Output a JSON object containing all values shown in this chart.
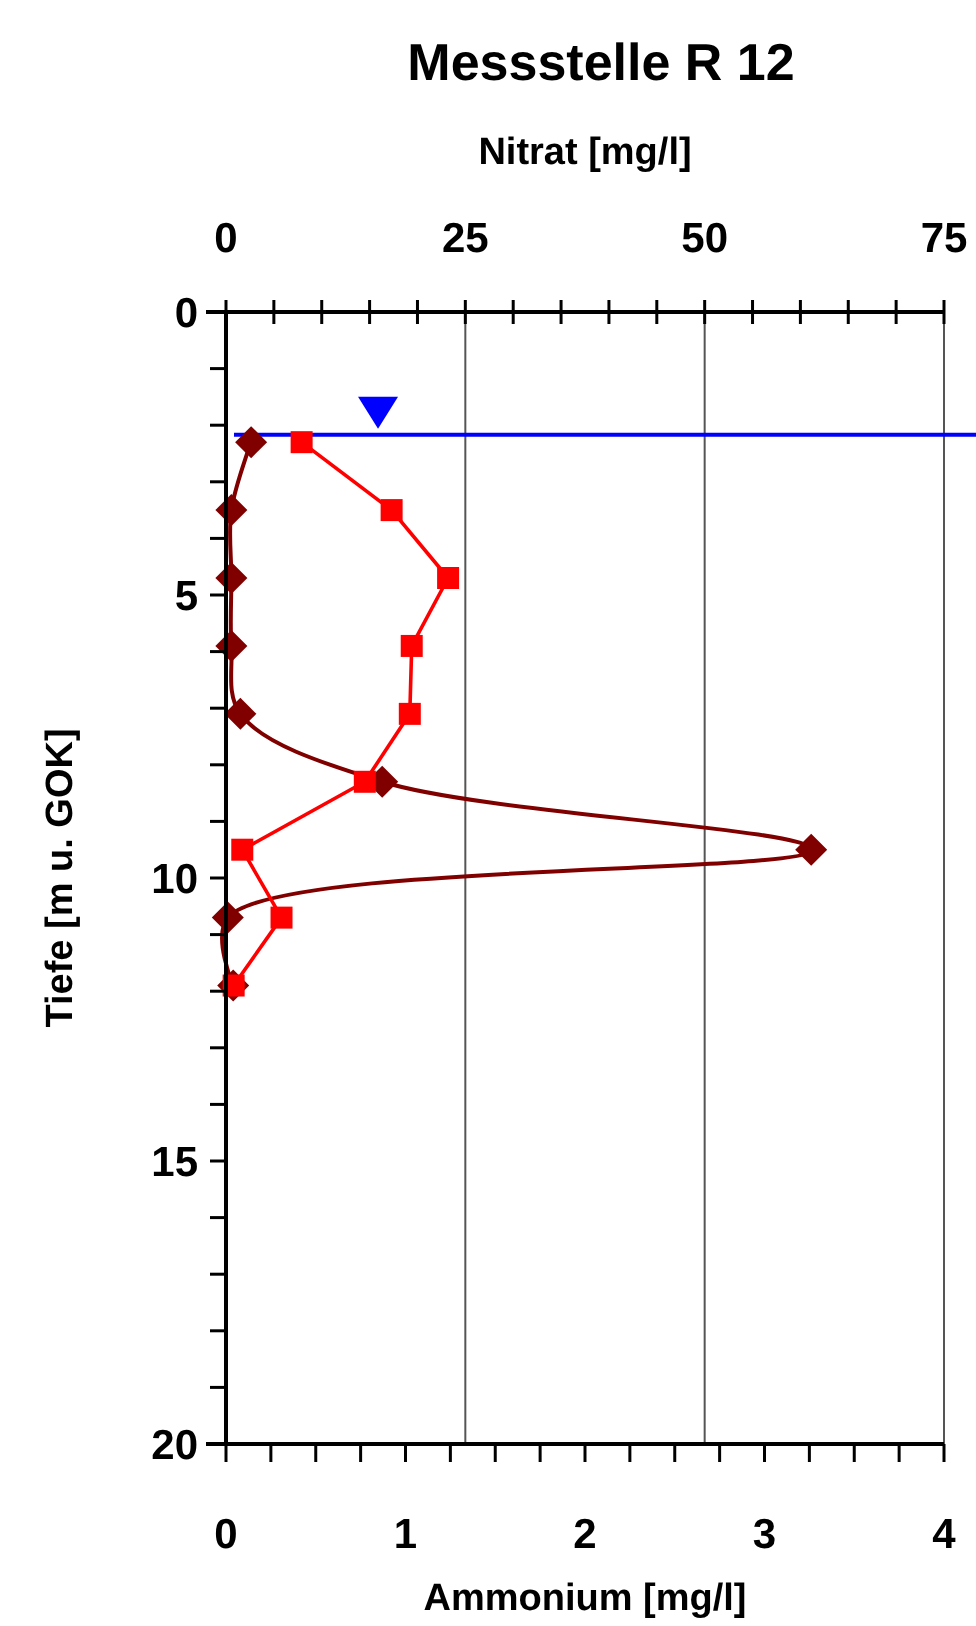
{
  "chart_data": {
    "type": "line",
    "title": "Messstelle R 12",
    "xlabel": "Ammonium [mg/l]",
    "x2label": "Nitrat [mg/l]",
    "ylabel": "Tiefe [m u. GOK]",
    "xlim": [
      0,
      4
    ],
    "xticks": [
      0,
      {
        "value": 0.25,
        "label": null
      },
      {
        "value": 0.5,
        "label": null
      },
      {
        "value": 0.75,
        "label": null
      },
      1,
      {
        "value": 1.25,
        "label": null
      },
      {
        "value": 1.5,
        "label": null
      },
      {
        "value": 1.75,
        "label": null
      },
      2,
      {
        "value": 2.25,
        "label": null
      },
      {
        "value": 2.5,
        "label": null
      },
      {
        "value": 2.75,
        "label": null
      },
      3,
      {
        "value": 3.25,
        "label": null
      },
      {
        "value": 3.5,
        "label": null
      },
      {
        "value": 3.75,
        "label": null
      },
      4
    ],
    "x2lim": [
      0,
      75
    ],
    "x2ticks": [
      0,
      {
        "value": 5,
        "label": null
      },
      {
        "value": 10,
        "label": null
      },
      {
        "value": 15,
        "label": null
      },
      {
        "value": 20,
        "label": null
      },
      25,
      {
        "value": 30,
        "label": null
      },
      {
        "value": 35,
        "label": null
      },
      {
        "value": 40,
        "label": null
      },
      {
        "value": 45,
        "label": null
      },
      50,
      {
        "value": 55,
        "label": null
      },
      {
        "value": 60,
        "label": null
      },
      {
        "value": 65,
        "label": null
      },
      {
        "value": 70,
        "label": null
      },
      75
    ],
    "ylim": [
      20,
      0
    ],
    "yticks": [
      0,
      {
        "value": 1,
        "label": null
      },
      {
        "value": 2,
        "label": null
      },
      {
        "value": 3,
        "label": null
      },
      {
        "value": 4,
        "label": null
      },
      5,
      {
        "value": 6,
        "label": null
      },
      {
        "value": 7,
        "label": null
      },
      {
        "value": 8,
        "label": null
      },
      {
        "value": 9,
        "label": null
      },
      10,
      {
        "value": 11,
        "label": null
      },
      {
        "value": 12,
        "label": null
      },
      {
        "value": 13,
        "label": null
      },
      {
        "value": 14,
        "label": null
      },
      15,
      {
        "value": 16,
        "label": null
      },
      {
        "value": 17,
        "label": null
      },
      {
        "value": 18,
        "label": null
      },
      {
        "value": 19,
        "label": null
      },
      20
    ],
    "grid": "x2",
    "ref_lines": [
      {
        "axis": "y",
        "value": 2.17,
        "color": "#0000ff"
      }
    ],
    "series": [
      {
        "color": "#800000",
        "marker": "diamond",
        "x": [
          0.14,
          0.03,
          0.03,
          0.03,
          0.08,
          0.87,
          3.26,
          0.01,
          0.04
        ],
        "values": [
          2.3,
          3.5,
          4.7,
          5.9,
          7.1,
          8.3,
          9.5,
          10.7,
          11.9
        ]
      },
      {
        "color": "#ff0000",
        "marker": "square",
        "axis": "x2",
        "x": [
          7.9,
          17.3,
          23.2,
          19.4,
          19.2,
          14.5,
          1.7,
          5.8,
          0.8
        ],
        "values": [
          2.3,
          3.5,
          4.7,
          5.9,
          7.1,
          8.3,
          9.5,
          10.7,
          11.9
        ]
      }
    ]
  }
}
